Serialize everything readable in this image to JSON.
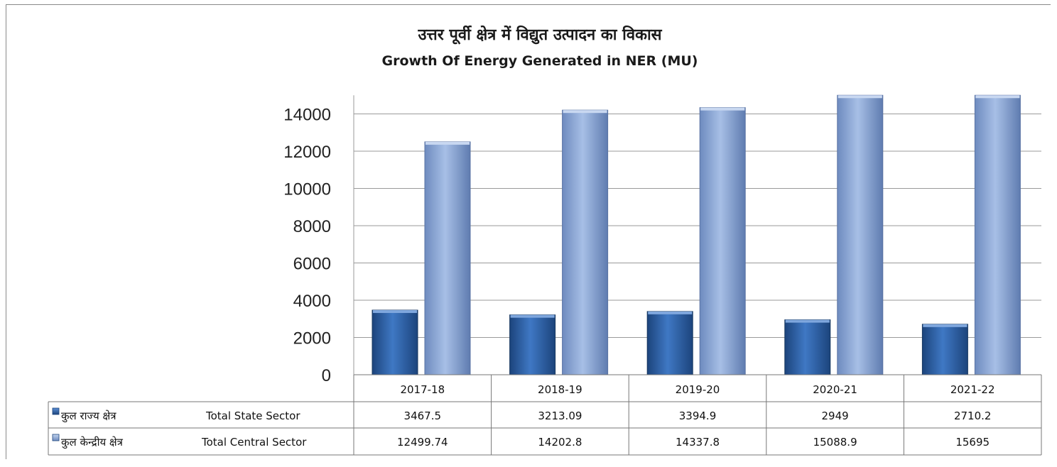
{
  "chart_data": {
    "type": "bar",
    "title": "उत्तर पूर्वी क्षेत्र में विद्युत उत्पादन का विकास",
    "subtitle": "Growth Of Energy Generated in NER (MU)",
    "categories": [
      "2017-18",
      "2018-19",
      "2019-20",
      "2020-21",
      "2021-22"
    ],
    "series": [
      {
        "name": "कुल राज्य क्षेत्र",
        "name_en": "Total State Sector",
        "values": [
          3467.5,
          3213.09,
          3394.9,
          2949,
          2710.2
        ],
        "labels": [
          "3467.5",
          "3213.09",
          "3394.9",
          "2949",
          "2710.2"
        ],
        "color": "#2f62a8"
      },
      {
        "name": "कुल केन्द्रीय क्षेत्र",
        "name_en": "Total Central Sector",
        "values": [
          12499.74,
          14202.8,
          14337.8,
          15088.9,
          15695
        ],
        "labels": [
          "12499.74",
          "14202.8",
          "14337.8",
          "15088.9",
          "15695"
        ],
        "color": "#8fa9d6"
      }
    ],
    "yticks": [
      "0",
      "2000",
      "4000",
      "6000",
      "8000",
      "10000",
      "12000",
      "14000"
    ],
    "ylim": [
      0,
      15000
    ],
    "grid": true,
    "legend": "data-table"
  }
}
